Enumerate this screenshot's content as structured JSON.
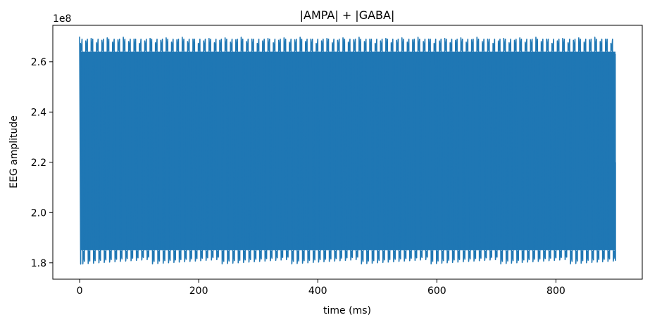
{
  "chart_data": {
    "type": "line",
    "title": "|AMPA| + |GABA|",
    "xlabel": "time (ms)",
    "ylabel": "EEG amplitude",
    "offset_text": "1e8",
    "xlim": [
      -45,
      945
    ],
    "ylim": [
      1.735,
      2.745
    ],
    "y_multiplier": 100000000,
    "x_ticks": [
      0,
      200,
      400,
      600,
      800
    ],
    "x_tick_labels": [
      "0",
      "200",
      "400",
      "600",
      "800"
    ],
    "y_ticks": [
      1.8,
      2.0,
      2.2,
      2.4,
      2.6
    ],
    "y_tick_labels": [
      "1.8",
      "2.0",
      "2.2",
      "2.4",
      "2.6"
    ],
    "grid": false,
    "color": "#1f77b4",
    "series": [
      {
        "x_start": 0,
        "x_end": 900,
        "envelope_upper": [
          2.64,
          2.7
        ],
        "envelope_lower": [
          1.79,
          1.85
        ],
        "final_value": 2.2,
        "cycles": 100
      }
    ]
  }
}
